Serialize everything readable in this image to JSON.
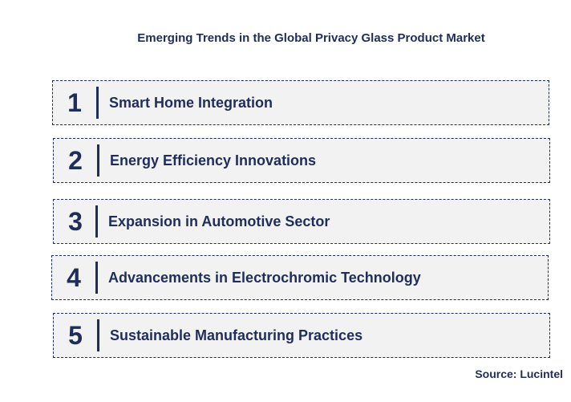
{
  "title": "Emerging Trends in the Global Privacy Glass Product Market",
  "trends": [
    {
      "number": "1",
      "label": "Smart Home Integration"
    },
    {
      "number": "2",
      "label": "Energy Efficiency Innovations"
    },
    {
      "number": "3",
      "label": "Expansion in Automotive Sector"
    },
    {
      "number": "4",
      "label": "Advancements in Electrochromic Technology"
    },
    {
      "number": "5",
      "label": "Sustainable Manufacturing Practices"
    }
  ],
  "source": "Source: Lucintel",
  "colors": {
    "accent": "#1f2d5a",
    "box_fill": "#f2f2f2",
    "background": "#ffffff"
  }
}
